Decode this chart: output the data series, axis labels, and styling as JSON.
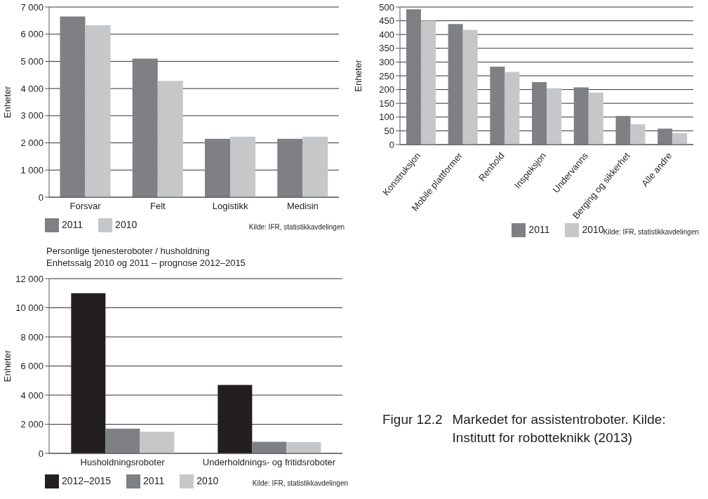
{
  "chart_data": [
    {
      "type": "bar",
      "ylabel": "Enheter",
      "categories": [
        "Forsvar",
        "Felt",
        "Logistikk",
        "Medisin"
      ],
      "series": [
        {
          "name": "2011",
          "color": "#7f8083",
          "values": [
            6650,
            5100,
            2150,
            2150
          ]
        },
        {
          "name": "2010",
          "color": "#c6c7c9",
          "values": [
            6330,
            4280,
            2230,
            2230
          ]
        }
      ],
      "ylim": [
        0,
        7000
      ],
      "yticks": [
        0,
        {
          "value": 1000,
          "label": "1 000"
        },
        {
          "value": 2000,
          "label": "2 000"
        },
        {
          "value": 3000,
          "label": "3 000"
        },
        {
          "value": 4000,
          "label": "4 000"
        },
        {
          "value": 5000,
          "label": "5 000"
        },
        {
          "value": 6000,
          "label": "6 000"
        },
        {
          "value": 7000,
          "label": "7 000"
        }
      ],
      "grid": "y",
      "legend": "bottom left",
      "annotations": [
        "Kilde: IFR, statistikkavdelingen"
      ]
    },
    {
      "type": "bar",
      "ylabel": "Enheter",
      "categories": [
        "Konstruksjon",
        "Mobile plattformer",
        "Renhold",
        "Inspeksjon",
        "Undervanns",
        "Berging og sikkerhet",
        "Alle andre"
      ],
      "series": [
        {
          "name": "2011",
          "color": "#7f8083",
          "values": [
            492,
            438,
            283,
            227,
            208,
            104,
            58
          ]
        },
        {
          "name": "2010",
          "color": "#c6c7c9",
          "values": [
            450,
            417,
            264,
            205,
            189,
            74,
            42
          ]
        }
      ],
      "ylim": [
        0,
        500
      ],
      "yticks": [
        0,
        50,
        100,
        150,
        200,
        250,
        300,
        350,
        400,
        450,
        500
      ],
      "grid": "y",
      "legend": "bottom",
      "annotations": [
        "Kilde: IFR, statistikkavdelingen"
      ]
    },
    {
      "type": "bar",
      "title": "Personlige tjenesteroboter / husholdning",
      "subtitle": "Enhetssalg 2010 og 2011 – prognose 2012–2015",
      "ylabel": "Enheter",
      "categories": [
        "Husholdningsroboter",
        "Underholdnings- og fritidsroboter"
      ],
      "series": [
        {
          "name": "2012–2015",
          "color": "#231f20",
          "values": [
            11000,
            4700
          ]
        },
        {
          "name": "2011",
          "color": "#7f8083",
          "values": [
            1700,
            800
          ]
        },
        {
          "name": "2010",
          "color": "#c6c7c9",
          "values": [
            1480,
            770
          ]
        }
      ],
      "ylim": [
        0,
        12000
      ],
      "yticks": [
        0,
        {
          "value": 2000,
          "label": "2 000"
        },
        {
          "value": 4000,
          "label": "4 000"
        },
        {
          "value": 6000,
          "label": "6 000"
        },
        {
          "value": 8000,
          "label": "8 000"
        },
        {
          "value": 10000,
          "label": "10 000"
        },
        {
          "value": 12000,
          "label": "12 000"
        }
      ],
      "grid": "y",
      "legend": "bottom left",
      "annotations": [
        "Kilde: IFR, statistikkavdelingen"
      ]
    },
    {
      "type": "other",
      "annotations": [
        "Figur 12.2",
        "Markedet for assistentroboter. Kilde: Institutt for robotteknikk (2013)"
      ]
    }
  ]
}
